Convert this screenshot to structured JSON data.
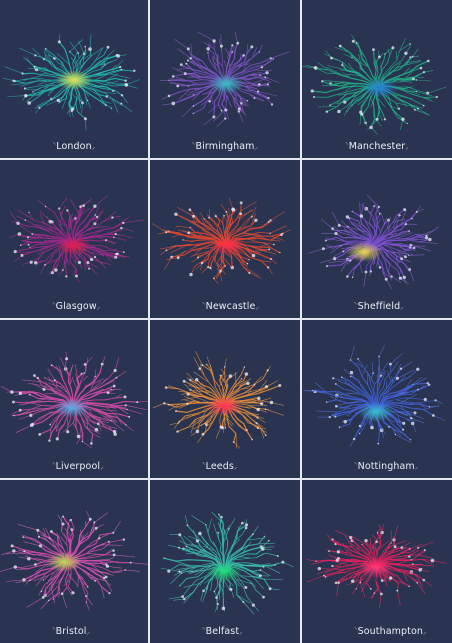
{
  "tiles": [
    {
      "city": "London",
      "colors": [
        "#1fb8b0",
        "#2ec4b6",
        "#f2e24a"
      ]
    },
    {
      "city": "Birmingham",
      "colors": [
        "#7a4fc2",
        "#9a5fd6",
        "#33c6c0"
      ]
    },
    {
      "city": "Manchester",
      "colors": [
        "#1faa84",
        "#2bc49a",
        "#2a7be0"
      ]
    },
    {
      "city": "Glasgow",
      "colors": [
        "#a4268e",
        "#c2329f",
        "#e4204a"
      ]
    },
    {
      "city": "Newcastle",
      "colors": [
        "#e1452f",
        "#f05a3a",
        "#ff2d4e"
      ]
    },
    {
      "city": "Sheffield",
      "colors": [
        "#7d4fd0",
        "#9a6ae2",
        "#f2e24a"
      ]
    },
    {
      "city": "Liverpool",
      "colors": [
        "#d24aa6",
        "#e65fb8",
        "#4fb4e8"
      ]
    },
    {
      "city": "Leeds",
      "colors": [
        "#e58a3a",
        "#f0a04a",
        "#ff2a5a"
      ]
    },
    {
      "city": "Nottingham",
      "colors": [
        "#3f5fd6",
        "#5a78e8",
        "#39c6d4"
      ]
    },
    {
      "city": "Bristol",
      "colors": [
        "#d74ab0",
        "#e66bc6",
        "#b6e34a"
      ]
    },
    {
      "city": "Belfast",
      "colors": [
        "#35b7a6",
        "#4fd0bb",
        "#22e07a"
      ]
    },
    {
      "city": "Southampton",
      "colors": [
        "#e01f5a",
        "#ff2b6a",
        "#ff3a7a"
      ]
    }
  ]
}
